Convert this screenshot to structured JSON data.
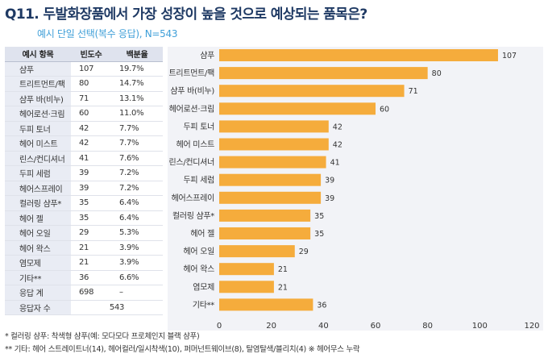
{
  "title": "Q11. 두발화장품에서 가장 성장이 높을 것으로 예상되는 품목은?",
  "subtitle": "예시 단일 선택(복수 응답), N=543",
  "table": {
    "headers": [
      "예시 항목",
      "빈도수",
      "백분율"
    ],
    "rows": [
      [
        "샴푸",
        "107",
        "19.7%"
      ],
      [
        "트리트먼트/팩",
        "80",
        "14.7%"
      ],
      [
        "샴푸 바(비누)",
        "71",
        "13.1%"
      ],
      [
        "헤어로션·크림",
        "60",
        "11.0%"
      ],
      [
        "두피 토너",
        "42",
        "7.7%"
      ],
      [
        "헤어 미스트",
        "42",
        "7.7%"
      ],
      [
        "린스/컨디셔너",
        "41",
        "7.6%"
      ],
      [
        "두피 세럼",
        "39",
        "7.2%"
      ],
      [
        "헤어스프레이",
        "39",
        "7.2%"
      ],
      [
        "컬러링 샴푸*",
        "35",
        "6.4%"
      ],
      [
        "헤어 젤",
        "35",
        "6.4%"
      ],
      [
        "헤어 오일",
        "29",
        "5.3%"
      ],
      [
        "헤어 왁스",
        "21",
        "3.9%"
      ],
      [
        "염모제",
        "21",
        "3.9%"
      ],
      [
        "기타**",
        "36",
        "6.6%"
      ]
    ],
    "total_row": [
      "응답 계",
      "698",
      "–"
    ],
    "respondents_row": [
      "응답자 수",
      "543"
    ]
  },
  "chart_data": {
    "type": "bar",
    "orientation": "horizontal",
    "categories": [
      "샴푸",
      "트리트먼트/팩",
      "샴푸 바(비누)",
      "헤어로션·크림",
      "두피 토너",
      "헤어 미스트",
      "린스/컨디셔너",
      "두피 세럼",
      "헤어스프레이",
      "컬러링 샴푸*",
      "헤어 젤",
      "헤어 오일",
      "헤어 왁스",
      "염모제",
      "기타**"
    ],
    "values": [
      107,
      80,
      71,
      60,
      42,
      42,
      41,
      39,
      39,
      35,
      35,
      29,
      21,
      21,
      36
    ],
    "xlim": [
      0,
      120
    ],
    "xticks": [
      0,
      20,
      40,
      60,
      80,
      100,
      120
    ],
    "grid": false,
    "bar_color": "#f5ac3c",
    "panel_color": "#f2f3f7"
  },
  "footnotes": [
    "* 컬러링 샴푸: 착색형 샴푸(예: 모다모다 프로체인지 블랙 샴푸)",
    "** 기타: 헤어 스트레이트너(14), 헤어컬러/일시착색(10), 퍼머넌트웨이브(8), 탈염탈색/블리치(4) ※ 헤어무스 누락"
  ]
}
